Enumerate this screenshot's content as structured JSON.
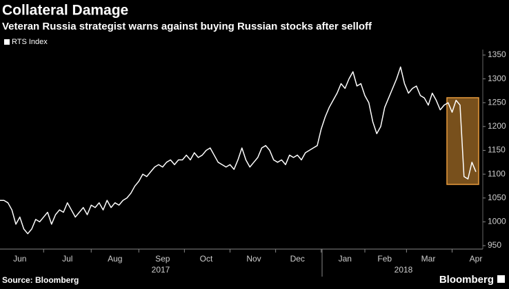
{
  "chart_data": {
    "type": "line",
    "title": "Collateral Damage",
    "subtitle": "Veteran Russia strategist warns against buying Russian stocks after selloff",
    "source": "Source: Bloomberg",
    "brand": "Bloomberg",
    "x_years": [
      "2017",
      "2018"
    ],
    "categories": [
      null,
      null,
      null,
      null,
      null,
      "Jun",
      null,
      null,
      null,
      null,
      null,
      null,
      null,
      null,
      null,
      null,
      null,
      "Jul",
      null,
      null,
      null,
      null,
      null,
      null,
      null,
      null,
      null,
      null,
      null,
      "Aug",
      null,
      null,
      null,
      null,
      null,
      null,
      null,
      null,
      null,
      null,
      null,
      "Sep",
      null,
      null,
      null,
      null,
      null,
      null,
      null,
      null,
      null,
      null,
      "Oct",
      null,
      null,
      null,
      null,
      null,
      null,
      null,
      null,
      null,
      null,
      null,
      "Nov",
      null,
      null,
      null,
      null,
      null,
      null,
      null,
      null,
      null,
      null,
      "Dec",
      null,
      null,
      null,
      null,
      null,
      null,
      null,
      null,
      null,
      null,
      null,
      "Jan",
      null,
      null,
      null,
      null,
      null,
      null,
      null,
      null,
      null,
      "Feb",
      null,
      null,
      null,
      null,
      null,
      null,
      null,
      null,
      null,
      null,
      "Mar",
      null,
      null,
      null,
      null,
      null,
      null,
      null,
      null,
      null,
      null,
      null,
      "Apr"
    ],
    "series": [
      {
        "name": "RTS Index",
        "color": "#ffffff",
        "values": [
          1045,
          1045,
          1040,
          1025,
          995,
          1010,
          985,
          975,
          985,
          1005,
          1000,
          1010,
          1020,
          995,
          1015,
          1025,
          1020,
          1040,
          1025,
          1010,
          1020,
          1030,
          1015,
          1035,
          1030,
          1040,
          1025,
          1045,
          1030,
          1040,
          1035,
          1045,
          1050,
          1060,
          1075,
          1085,
          1100,
          1095,
          1105,
          1115,
          1120,
          1115,
          1125,
          1130,
          1120,
          1130,
          1130,
          1140,
          1130,
          1145,
          1135,
          1140,
          1150,
          1155,
          1140,
          1125,
          1120,
          1115,
          1120,
          1110,
          1130,
          1155,
          1130,
          1115,
          1125,
          1135,
          1155,
          1160,
          1150,
          1130,
          1125,
          1130,
          1120,
          1140,
          1135,
          1140,
          1130,
          1145,
          1150,
          1155,
          1160,
          1195,
          1220,
          1240,
          1255,
          1270,
          1290,
          1280,
          1300,
          1315,
          1285,
          1290,
          1265,
          1250,
          1210,
          1185,
          1200,
          1240,
          1260,
          1280,
          1300,
          1325,
          1290,
          1270,
          1280,
          1285,
          1265,
          1260,
          1245,
          1270,
          1255,
          1235,
          1245,
          1250,
          1230,
          1255,
          1245,
          1095,
          1090,
          1125,
          1105
        ]
      }
    ],
    "ylim": [
      950,
      1350
    ],
    "yticks": [
      950,
      1000,
      1050,
      1100,
      1150,
      1200,
      1250,
      1300,
      1350
    ],
    "grid": false,
    "legend": "top-left"
  }
}
